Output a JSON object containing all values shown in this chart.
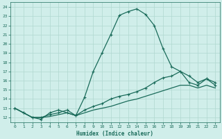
{
  "xlabel": "Humidex (Indice chaleur)",
  "ylabel": "",
  "xlim": [
    -0.5,
    23.5
  ],
  "ylim": [
    11.5,
    24.5
  ],
  "yticks": [
    12,
    13,
    14,
    15,
    16,
    17,
    18,
    19,
    20,
    21,
    22,
    23,
    24
  ],
  "xticks": [
    0,
    1,
    2,
    3,
    4,
    5,
    6,
    7,
    8,
    9,
    10,
    11,
    12,
    13,
    14,
    15,
    16,
    17,
    18,
    19,
    20,
    21,
    22,
    23
  ],
  "bg_color": "#d0eeea",
  "grid_color": "#b0d8d0",
  "line_color": "#1a6b5a",
  "line1_x": [
    0,
    1,
    2,
    3,
    4,
    5,
    6,
    7,
    8,
    9,
    10,
    11,
    12,
    13,
    14,
    15,
    16,
    17,
    18,
    19,
    20,
    21,
    22,
    23
  ],
  "line1_y": [
    13.0,
    12.5,
    12.0,
    11.8,
    12.5,
    12.8,
    12.5,
    12.2,
    14.2,
    17.0,
    19.0,
    21.0,
    23.1,
    23.5,
    23.8,
    23.2,
    22.0,
    19.5,
    17.5,
    17.0,
    15.8,
    15.5,
    16.2,
    15.5
  ],
  "line1_marker": true,
  "line2_x": [
    0,
    1,
    2,
    3,
    4,
    5,
    6,
    7,
    8,
    9,
    10,
    11,
    12,
    13,
    14,
    15,
    16,
    17,
    18,
    19,
    20,
    21,
    22,
    23
  ],
  "line2_y": [
    13.0,
    12.5,
    12.0,
    12.0,
    12.3,
    12.5,
    12.8,
    12.2,
    12.8,
    13.2,
    13.5,
    14.0,
    14.3,
    14.5,
    14.8,
    15.2,
    15.8,
    16.3,
    16.5,
    17.0,
    16.5,
    15.8,
    16.2,
    15.8
  ],
  "line2_marker": true,
  "line3_x": [
    0,
    1,
    2,
    3,
    4,
    5,
    6,
    7,
    8,
    9,
    10,
    11,
    12,
    13,
    14,
    15,
    16,
    17,
    18,
    19,
    20,
    21,
    22,
    23
  ],
  "line3_y": [
    13.0,
    12.5,
    12.0,
    12.0,
    12.1,
    12.3,
    12.5,
    12.2,
    12.5,
    12.8,
    13.0,
    13.2,
    13.5,
    13.8,
    14.0,
    14.3,
    14.6,
    14.9,
    15.2,
    15.5,
    15.5,
    15.2,
    15.5,
    15.2
  ],
  "line3_marker": false
}
